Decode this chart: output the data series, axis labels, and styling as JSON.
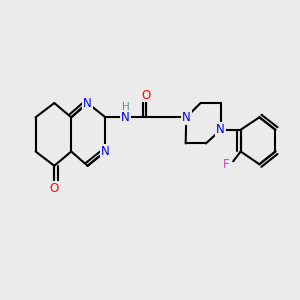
{
  "bg_color": "#ebebeb",
  "bond_color": "#000000",
  "bond_width": 1.5,
  "atom_colors": {
    "N": "#0000ee",
    "O": "#ff0000",
    "F": "#cc44cc",
    "H": "#4a9999",
    "C": "#000000"
  },
  "font_size_atom": 8.5,
  "fig_size": [
    3.0,
    3.0
  ],
  "dpi": 100
}
